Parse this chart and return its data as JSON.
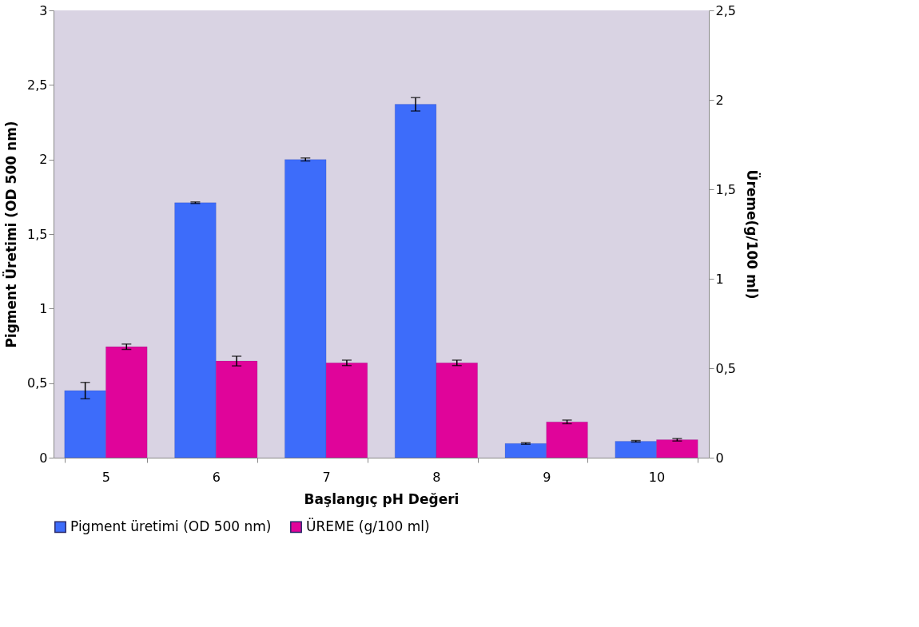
{
  "chart_data": {
    "type": "bar",
    "xlabel": "Başlangıç pH Değeri",
    "ylabel": "Pigment Üretimi (OD 500 nm)",
    "y2label": "Üreme(g/100 ml)",
    "categories": [
      "5",
      "6",
      "7",
      "8",
      "9",
      "10"
    ],
    "series": [
      {
        "name": "Pigment üretimi (OD 500 nm)",
        "color": "#3d6cfa",
        "values": [
          0.45,
          1.71,
          2.0,
          2.37,
          0.095,
          0.11
        ],
        "errors": [
          0.055,
          0.005,
          0.01,
          0.045,
          0.005,
          0.005
        ]
      },
      {
        "name": "ÜREME (g/100 ml)",
        "color": "#e0049a",
        "axis": "y2",
        "values": [
          0.62,
          0.54,
          0.53,
          0.53,
          0.2,
          0.1
        ],
        "errors": [
          0.015,
          0.027,
          0.015,
          0.015,
          0.01,
          0.007
        ]
      }
    ],
    "ylim": [
      0,
      3
    ],
    "yticks": [
      0,
      {
        "value": 0.5,
        "label": "0,5"
      },
      1,
      {
        "value": 1.5,
        "label": "1,5"
      },
      2,
      {
        "value": 2.5,
        "label": "2,5"
      },
      3
    ],
    "y2lim": [
      0,
      2.5
    ],
    "y2ticks": [
      0,
      {
        "value": 0.5,
        "label": "0,5"
      },
      1,
      {
        "value": 1.5,
        "label": "1,5"
      },
      2,
      {
        "value": 2.5,
        "label": "2,5"
      }
    ],
    "grid": false,
    "legend": "bottom"
  }
}
